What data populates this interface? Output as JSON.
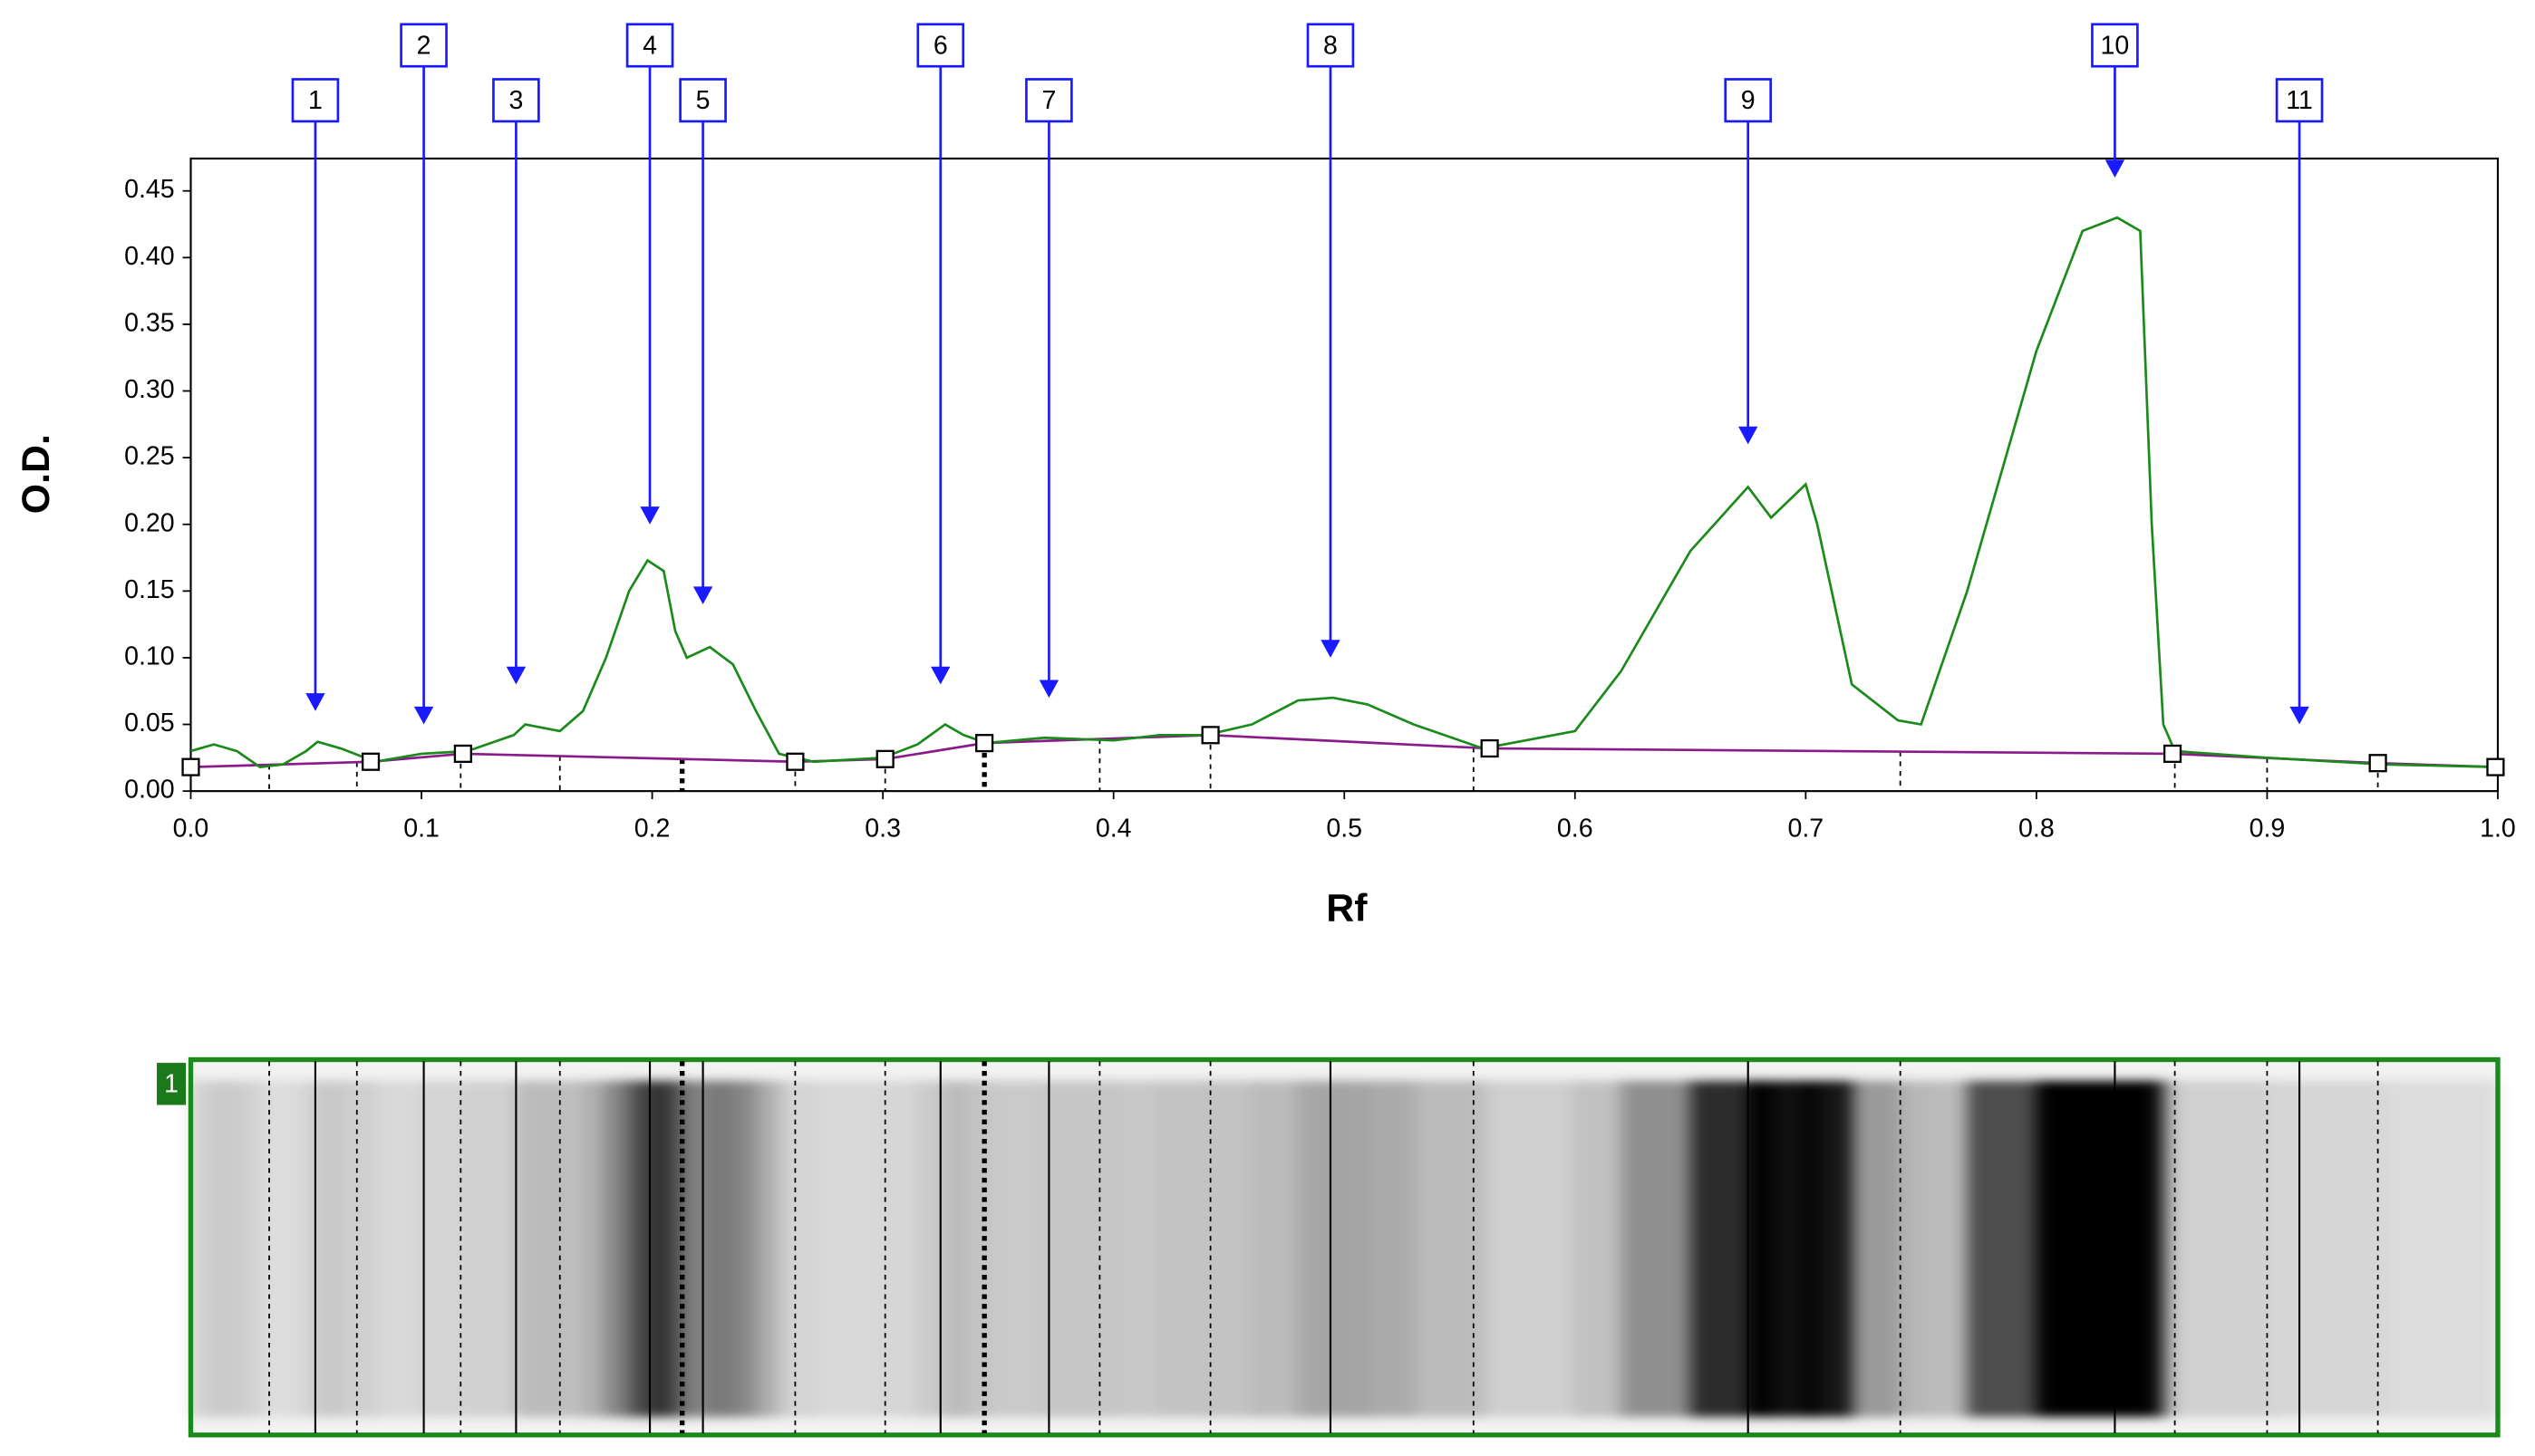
{
  "chart_data": {
    "type": "line",
    "x_label": "Rf",
    "y_label": "O.D.",
    "xlim": [
      0,
      1
    ],
    "ylim": [
      0,
      0.45
    ],
    "xticks": [
      {
        "value": 0,
        "label": "0.0"
      },
      0.1,
      0.2,
      0.3,
      0.4,
      0.5,
      0.6,
      0.7,
      0.8,
      0.9,
      {
        "value": 1,
        "label": "1.0"
      }
    ],
    "yticks": [
      {
        "value": 0,
        "label": "0.00"
      },
      0.05,
      {
        "value": 0.1,
        "label": "0.10"
      },
      0.15,
      {
        "value": 0.2,
        "label": "0.20"
      },
      0.25,
      {
        "value": 0.3,
        "label": "0.30"
      },
      0.35,
      {
        "value": 0.4,
        "label": "0.40"
      },
      0.45
    ],
    "curve": {
      "color": "#1a8a1a",
      "x": [
        0,
        0.01,
        0.02,
        0.03,
        0.04,
        0.05,
        0.055,
        0.065,
        0.08,
        0.1,
        0.12,
        0.14,
        0.145,
        0.16,
        0.17,
        0.18,
        0.19,
        0.198,
        0.205,
        0.21,
        0.215,
        0.225,
        0.235,
        0.245,
        0.255,
        0.27,
        0.3,
        0.315,
        0.327,
        0.335,
        0.345,
        0.37,
        0.4,
        0.42,
        0.44,
        0.46,
        0.48,
        0.495,
        0.51,
        0.53,
        0.56,
        0.6,
        0.62,
        0.65,
        0.675,
        0.685,
        0.7,
        0.705,
        0.72,
        0.74,
        0.75,
        0.77,
        0.8,
        0.82,
        0.835,
        0.845,
        0.85,
        0.855,
        0.86,
        0.9,
        0.95,
        1
      ],
      "values": [
        0.03,
        0.035,
        0.03,
        0.018,
        0.02,
        0.03,
        0.037,
        0.032,
        0.022,
        0.028,
        0.03,
        0.042,
        0.05,
        0.045,
        0.06,
        0.1,
        0.15,
        0.173,
        0.165,
        0.12,
        0.1,
        0.108,
        0.095,
        0.06,
        0.028,
        0.022,
        0.025,
        0.035,
        0.05,
        0.042,
        0.036,
        0.04,
        0.038,
        0.042,
        0.042,
        0.05,
        0.068,
        0.07,
        0.065,
        0.05,
        0.032,
        0.045,
        0.09,
        0.18,
        0.228,
        0.205,
        0.23,
        0.2,
        0.08,
        0.053,
        0.05,
        0.15,
        0.33,
        0.42,
        0.43,
        0.42,
        0.2,
        0.05,
        0.03,
        0.025,
        0.02,
        0.018
      ]
    },
    "baseline": {
      "color": "#8b1a8b",
      "x": [
        0,
        0.078,
        0.118,
        0.262,
        0.301,
        0.344,
        0.442,
        0.563,
        0.859,
        0.948,
        0.999
      ],
      "values": [
        0.018,
        0.022,
        0.028,
        0.022,
        0.024,
        0.036,
        0.042,
        0.032,
        0.028,
        0.021,
        0.018
      ]
    },
    "boundaries": [
      0.034,
      0.072,
      0.117,
      0.16,
      0.213,
      0.262,
      0.301,
      0.344,
      0.394,
      0.442,
      0.556,
      0.741,
      0.86,
      0.9,
      0.948
    ],
    "peaks": [
      {
        "label": "1",
        "rf": 0.054,
        "od": 0.06
      },
      {
        "label": "2",
        "rf": 0.101,
        "od": 0.05
      },
      {
        "label": "3",
        "rf": 0.141,
        "od": 0.08
      },
      {
        "label": "4",
        "rf": 0.199,
        "od": 0.2
      },
      {
        "label": "5",
        "rf": 0.222,
        "od": 0.14
      },
      {
        "label": "6",
        "rf": 0.325,
        "od": 0.08
      },
      {
        "label": "7",
        "rf": 0.372,
        "od": 0.07
      },
      {
        "label": "8",
        "rf": 0.494,
        "od": 0.1
      },
      {
        "label": "9",
        "rf": 0.675,
        "od": 0.26
      },
      {
        "label": "10",
        "rf": 0.834,
        "od": 0.46
      },
      {
        "label": "11",
        "rf": 0.914,
        "od": 0.05
      }
    ],
    "lane_label": "1"
  }
}
